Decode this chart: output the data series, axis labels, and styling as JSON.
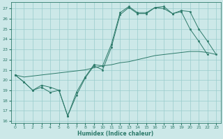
{
  "xlabel": "Humidex (Indice chaleur)",
  "background_color": "#cce8e8",
  "grid_color": "#99cccc",
  "line_color": "#2d7a6a",
  "xlim": [
    -0.5,
    23.5
  ],
  "ylim_min": 15.8,
  "ylim_max": 27.6,
  "yticks": [
    16,
    17,
    18,
    19,
    20,
    21,
    22,
    23,
    24,
    25,
    26,
    27
  ],
  "xticks": [
    0,
    1,
    2,
    3,
    4,
    5,
    6,
    7,
    8,
    9,
    10,
    11,
    12,
    13,
    14,
    15,
    16,
    17,
    18,
    19,
    20,
    21,
    22,
    23
  ],
  "line1_x": [
    0,
    1,
    2,
    3,
    4,
    5,
    6,
    7,
    8,
    9,
    10,
    11,
    12,
    13,
    14,
    15,
    16,
    17,
    18,
    19,
    20,
    21,
    22
  ],
  "line1_y": [
    20.5,
    19.8,
    19.0,
    19.5,
    19.3,
    19.0,
    16.5,
    18.5,
    20.2,
    21.4,
    21.0,
    23.2,
    26.4,
    27.1,
    26.5,
    26.5,
    27.1,
    27.2,
    26.5,
    26.7,
    25.0,
    23.8,
    22.5
  ],
  "line2_x": [
    0,
    1,
    2,
    3,
    4,
    5,
    6,
    7,
    8,
    9,
    10,
    11,
    12,
    13,
    14,
    15,
    16,
    17,
    18,
    19,
    20,
    21,
    22,
    23
  ],
  "line2_y": [
    20.5,
    19.8,
    19.0,
    19.3,
    18.8,
    19.0,
    16.5,
    18.8,
    20.3,
    21.5,
    21.4,
    23.5,
    26.6,
    27.2,
    26.6,
    26.6,
    27.1,
    27.0,
    26.5,
    26.8,
    26.7,
    25.0,
    23.8,
    22.5
  ],
  "line3_x": [
    0,
    1,
    2,
    3,
    4,
    5,
    6,
    7,
    8,
    9,
    10,
    11,
    12,
    13,
    14,
    15,
    16,
    17,
    18,
    19,
    20,
    21,
    22,
    23
  ],
  "line3_y": [
    20.5,
    20.3,
    20.4,
    20.5,
    20.6,
    20.7,
    20.8,
    20.9,
    21.0,
    21.2,
    21.4,
    21.5,
    21.7,
    21.8,
    22.0,
    22.2,
    22.4,
    22.5,
    22.6,
    22.7,
    22.8,
    22.8,
    22.7,
    22.5
  ],
  "xlabel_fontsize": 5.5,
  "tick_fontsize": 4.5,
  "linewidth": 0.7,
  "markersize": 1.8
}
